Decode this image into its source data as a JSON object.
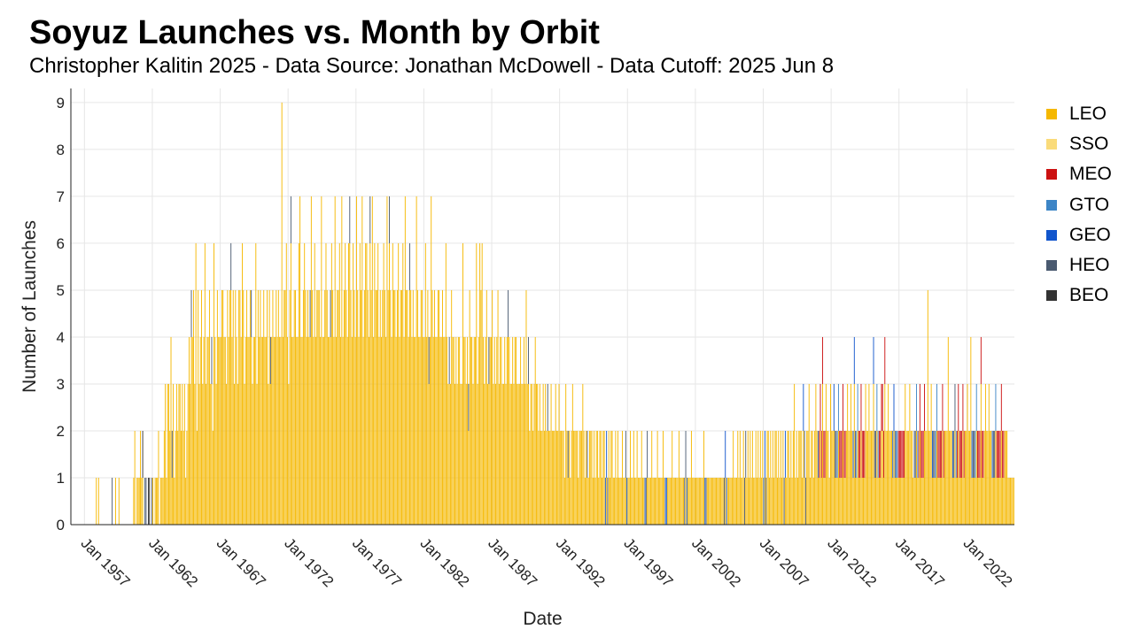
{
  "chart_data": {
    "type": "bar",
    "stacked": true,
    "title": "Soyuz Launches vs. Month by Orbit",
    "subtitle": "Christopher Kalitin 2025 - Data Source: Jonathan McDowell - Data Cutoff: 2025 Jun 8",
    "xlabel": "Date",
    "ylabel": "Number of Launches",
    "ylim": [
      0,
      9.3
    ],
    "y_ticks": [
      0,
      1,
      2,
      3,
      4,
      5,
      6,
      7,
      8,
      9
    ],
    "x_ticks": [
      "Jan 1957",
      "Jan 1962",
      "Jan 1967",
      "Jan 1972",
      "Jan 1977",
      "Jan 1982",
      "Jan 1987",
      "Jan 1992",
      "Jan 1997",
      "Jan 2002",
      "Jan 2007",
      "Jan 2012",
      "Jan 2017",
      "Jan 2022"
    ],
    "xlim": [
      "1956-01",
      "2025-07"
    ],
    "grid": true,
    "legend_position": "right",
    "series": [
      {
        "name": "LEO",
        "color": "#F5B800"
      },
      {
        "name": "SSO",
        "color": "#FADB7A"
      },
      {
        "name": "MEO",
        "color": "#CC1111"
      },
      {
        "name": "GTO",
        "color": "#3D85C6"
      },
      {
        "name": "GEO",
        "color": "#1155CC"
      },
      {
        "name": "HEO",
        "color": "#4A5A70"
      },
      {
        "name": "BEO",
        "color": "#333333"
      }
    ],
    "monthly_counts": [
      {
        "start": "1957-01",
        "counts": [
          0,
          0,
          0,
          0,
          0,
          0,
          0,
          0,
          0,
          0,
          1,
          0,
          1,
          0,
          0,
          0,
          0,
          0,
          0,
          0,
          0,
          0,
          0,
          0
        ]
      },
      {
        "start": "1959-01",
        "counts": [
          1,
          0,
          0,
          1,
          0,
          0,
          1,
          0,
          0,
          0,
          0,
          0,
          0,
          0,
          0,
          0,
          0,
          0,
          0,
          1,
          2,
          0,
          1,
          1
        ]
      },
      {
        "start": "1961-01",
        "counts": [
          1,
          2,
          1,
          2,
          0,
          1,
          1,
          0,
          1,
          1,
          0,
          1,
          1,
          0,
          1,
          1,
          1,
          2,
          0,
          1,
          1,
          1,
          2,
          3
        ]
      },
      {
        "start": "1963-01",
        "counts": [
          1,
          3,
          3,
          2,
          4,
          2,
          3,
          1,
          2,
          3,
          2,
          3,
          3,
          2,
          3,
          2,
          3,
          1,
          2,
          3,
          4,
          3,
          5,
          4
        ]
      },
      {
        "start": "1965-01",
        "counts": [
          5,
          3,
          6,
          2,
          5,
          3,
          4,
          5,
          3,
          4,
          6,
          3,
          4,
          4,
          5,
          3,
          4,
          2,
          6,
          4,
          3,
          5,
          4,
          4
        ]
      },
      {
        "start": "1967-01",
        "counts": [
          4,
          5,
          5,
          4,
          4,
          3,
          5,
          4,
          5,
          6,
          4,
          5,
          3,
          5,
          4,
          3,
          5,
          5,
          4,
          6,
          5,
          3,
          4,
          5
        ]
      },
      {
        "start": "1969-01",
        "counts": [
          4,
          4,
          5,
          5,
          3,
          4,
          4,
          6,
          3,
          5,
          4,
          5,
          4,
          4,
          5,
          4,
          4,
          5,
          3,
          5,
          4,
          4,
          5,
          4
        ]
      },
      {
        "start": "1971-01",
        "counts": [
          4,
          5,
          4,
          5,
          4,
          4,
          9,
          4,
          5,
          5,
          6,
          4,
          3,
          5,
          7,
          4,
          4,
          5,
          5,
          4,
          4,
          6,
          7,
          4
        ]
      },
      {
        "start": "1973-01",
        "counts": [
          4,
          5,
          6,
          5,
          4,
          5,
          4,
          5,
          7,
          5,
          4,
          6,
          4,
          5,
          5,
          5,
          4,
          7,
          4,
          4,
          5,
          6,
          5,
          4
        ]
      },
      {
        "start": "1975-01",
        "counts": [
          4,
          5,
          6,
          5,
          4,
          7,
          4,
          5,
          5,
          6,
          4,
          7,
          4,
          5,
          6,
          5,
          4,
          6,
          7,
          5,
          4,
          6,
          5,
          4
        ]
      },
      {
        "start": "1977-01",
        "counts": [
          7,
          5,
          4,
          6,
          5,
          7,
          4,
          5,
          6,
          6,
          5,
          4,
          7,
          5,
          7,
          4,
          6,
          5,
          5,
          6,
          4,
          5,
          4,
          5
        ]
      },
      {
        "start": "1979-01",
        "counts": [
          6,
          5,
          4,
          7,
          5,
          7,
          5,
          4,
          6,
          5,
          5,
          4,
          5,
          6,
          4,
          5,
          5,
          6,
          4,
          7,
          5,
          5,
          4,
          6
        ]
      },
      {
        "start": "1981-01",
        "counts": [
          5,
          4,
          5,
          4,
          4,
          7,
          5,
          4,
          4,
          5,
          5,
          4,
          4,
          6,
          4,
          5,
          4,
          4,
          7,
          5,
          4,
          5,
          4,
          4
        ]
      },
      {
        "start": "1983-01",
        "counts": [
          5,
          5,
          4,
          4,
          5,
          4,
          4,
          6,
          4,
          3,
          4,
          3,
          5,
          4,
          4,
          3,
          4,
          3,
          4,
          4,
          3,
          3,
          6,
          4
        ]
      },
      {
        "start": "1985-01",
        "counts": [
          4,
          3,
          4,
          3,
          5,
          4,
          4,
          3,
          4,
          4,
          6,
          3,
          4,
          6,
          5,
          6,
          4,
          3,
          4,
          5,
          3,
          4,
          4,
          4
        ]
      },
      {
        "start": "1987-01",
        "counts": [
          5,
          3,
          4,
          3,
          4,
          5,
          3,
          4,
          4,
          3,
          3,
          4,
          3,
          4,
          5,
          4,
          3,
          3,
          4,
          3,
          4,
          4,
          3,
          3
        ]
      },
      {
        "start": "1989-01",
        "counts": [
          3,
          4,
          3,
          3,
          4,
          3,
          5,
          3,
          4,
          2,
          3,
          3,
          2,
          3,
          4,
          3,
          3,
          2,
          3,
          2,
          2,
          3,
          2,
          3
        ]
      },
      {
        "start": "1991-01",
        "counts": [
          2,
          3,
          2,
          2,
          3,
          2,
          2,
          2,
          3,
          2,
          2,
          3,
          2,
          2,
          2,
          2,
          1,
          3,
          2,
          2,
          2,
          1,
          2,
          3
        ]
      },
      {
        "start": "1993-01",
        "counts": [
          2,
          2,
          2,
          2,
          1,
          2,
          2,
          2,
          3,
          2,
          1,
          2,
          2,
          1,
          2,
          2,
          2,
          1,
          2,
          1,
          2,
          2,
          1,
          2
        ]
      },
      {
        "start": "1995-01",
        "counts": [
          2,
          1,
          2,
          2,
          1,
          2,
          1,
          2,
          1,
          2,
          2,
          1,
          1,
          2,
          1,
          2,
          1,
          1,
          1,
          2,
          1,
          1,
          2,
          1
        ]
      },
      {
        "start": "1997-01",
        "counts": [
          1,
          1,
          2,
          1,
          1,
          2,
          1,
          1,
          2,
          1,
          1,
          1,
          2,
          1,
          1,
          1,
          1,
          2,
          1,
          1,
          1,
          2,
          1,
          1
        ]
      },
      {
        "start": "1999-01",
        "counts": [
          1,
          1,
          2,
          1,
          1,
          1,
          1,
          2,
          1,
          1,
          1,
          1,
          1,
          1,
          1,
          2,
          1,
          1,
          1,
          1,
          1,
          2,
          1,
          1
        ]
      },
      {
        "start": "2001-01",
        "counts": [
          1,
          1,
          1,
          2,
          1,
          1,
          1,
          1,
          2,
          1,
          1,
          1,
          1,
          1,
          1,
          1,
          1,
          1,
          1,
          2,
          1,
          1,
          1,
          1
        ]
      },
      {
        "start": "2003-01",
        "counts": [
          1,
          1,
          1,
          1,
          1,
          1,
          1,
          1,
          1,
          1,
          1,
          1,
          1,
          1,
          2,
          1,
          1,
          1,
          1,
          1,
          1,
          2,
          1,
          1
        ]
      },
      {
        "start": "2005-01",
        "counts": [
          1,
          2,
          1,
          2,
          1,
          1,
          2,
          1,
          2,
          1,
          2,
          1,
          2,
          1,
          2,
          1,
          1,
          2,
          1,
          2,
          1,
          2,
          1,
          2
        ]
      },
      {
        "start": "2007-01",
        "counts": [
          1,
          2,
          1,
          2,
          2,
          1,
          2,
          1,
          2,
          1,
          2,
          2,
          1,
          2,
          1,
          2,
          1,
          2,
          1,
          2,
          1,
          2,
          2,
          1
        ]
      },
      {
        "start": "2009-01",
        "counts": [
          2,
          1,
          2,
          3,
          1,
          2,
          1,
          2,
          2,
          2,
          1,
          3,
          2,
          1,
          2,
          2,
          3,
          1,
          2,
          2,
          1,
          2,
          3,
          2
        ]
      },
      {
        "start": "2011-01",
        "counts": [
          2,
          2,
          3,
          2,
          4,
          2,
          2,
          3,
          2,
          2,
          1,
          3,
          2,
          2,
          3,
          2,
          2,
          2,
          3,
          2,
          2,
          2,
          3,
          2
        ]
      },
      {
        "start": "2013-01",
        "counts": [
          2,
          2,
          3,
          2,
          2,
          3,
          2,
          2,
          4,
          2,
          2,
          3,
          2,
          2,
          3,
          2,
          2,
          2,
          3,
          2,
          2,
          3,
          2,
          2
        ]
      },
      {
        "start": "2015-01",
        "counts": [
          2,
          4,
          2,
          2,
          3,
          2,
          2,
          2,
          3,
          3,
          2,
          4,
          2,
          2,
          3,
          2,
          2,
          2,
          2,
          3,
          2,
          2,
          2,
          2
        ]
      },
      {
        "start": "2017-01",
        "counts": [
          2,
          2,
          2,
          2,
          2,
          3,
          2,
          2,
          2,
          3,
          2,
          2,
          1,
          2,
          2,
          3,
          2,
          2,
          3,
          2,
          2,
          2,
          3,
          2
        ]
      },
      {
        "start": "2019-01",
        "counts": [
          2,
          5,
          2,
          2,
          3,
          2,
          2,
          2,
          2,
          3,
          2,
          2,
          2,
          2,
          3,
          2,
          2,
          2,
          2,
          4,
          2,
          2,
          2,
          2
        ]
      },
      {
        "start": "2021-01",
        "counts": [
          2,
          3,
          2,
          2,
          3,
          2,
          2,
          2,
          3,
          2,
          2,
          2,
          3,
          2,
          2,
          4,
          2,
          2,
          2,
          2,
          3,
          2,
          2,
          2
        ]
      },
      {
        "start": "2023-01",
        "counts": [
          4,
          2,
          2,
          2,
          3,
          2,
          2,
          3,
          2,
          2,
          2,
          2,
          2,
          3,
          2,
          2,
          2,
          2,
          3,
          2,
          2,
          2,
          2,
          2
        ]
      },
      {
        "start": "2025-01",
        "counts": [
          1,
          1,
          1,
          1,
          1,
          1
        ]
      }
    ]
  }
}
